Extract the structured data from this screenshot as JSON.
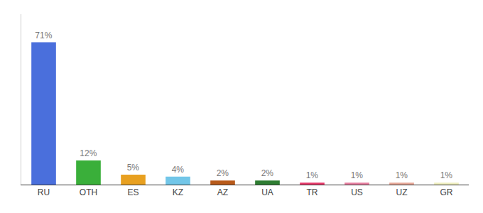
{
  "chart_data": {
    "type": "bar",
    "categories": [
      "RU",
      "OTH",
      "ES",
      "KZ",
      "AZ",
      "UA",
      "TR",
      "US",
      "UZ",
      "GR"
    ],
    "values": [
      71,
      12,
      5,
      4,
      2,
      2,
      1,
      1,
      1,
      1
    ],
    "value_labels": [
      "71%",
      "12%",
      "5%",
      "4%",
      "2%",
      "2%",
      "1%",
      "1%",
      "1%",
      "1%"
    ],
    "colors": [
      "#4a6fdc",
      "#3aaf3a",
      "#e8a020",
      "#72c6e8",
      "#b85a1a",
      "#2e7d32",
      "#e8396a",
      "#e87ea0",
      "#e8a898",
      "#f0f0c0"
    ],
    "ylim": [
      0,
      85
    ],
    "grid": false,
    "data_labels": true,
    "tick_labels": "x"
  }
}
